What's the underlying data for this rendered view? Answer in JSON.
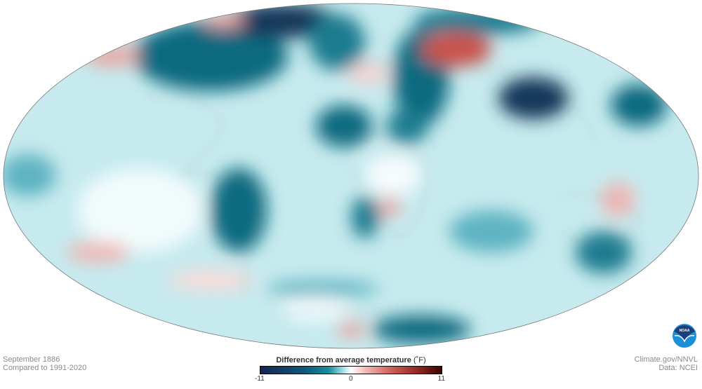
{
  "map": {
    "projection": "Hammer/Mollweide world",
    "colors": {
      "ocean_base": "#c6eaee",
      "strong_cold": "#14385a",
      "cold": "#0f6a80",
      "mild_cold": "#5fb4c2",
      "warm": "#e8a8a6",
      "strong_warm": "#c9524c"
    }
  },
  "caption": {
    "date": "September 1886",
    "baseline": "Compared to 1991-2020"
  },
  "legend": {
    "title": "Difference from average temperature",
    "unit": "(˚F)",
    "min": "-11",
    "mid": "0",
    "max": "11"
  },
  "credits": {
    "source": "Climate.gov/NNVL",
    "data": "Data: NCEI",
    "logo_text": "NOAA"
  }
}
